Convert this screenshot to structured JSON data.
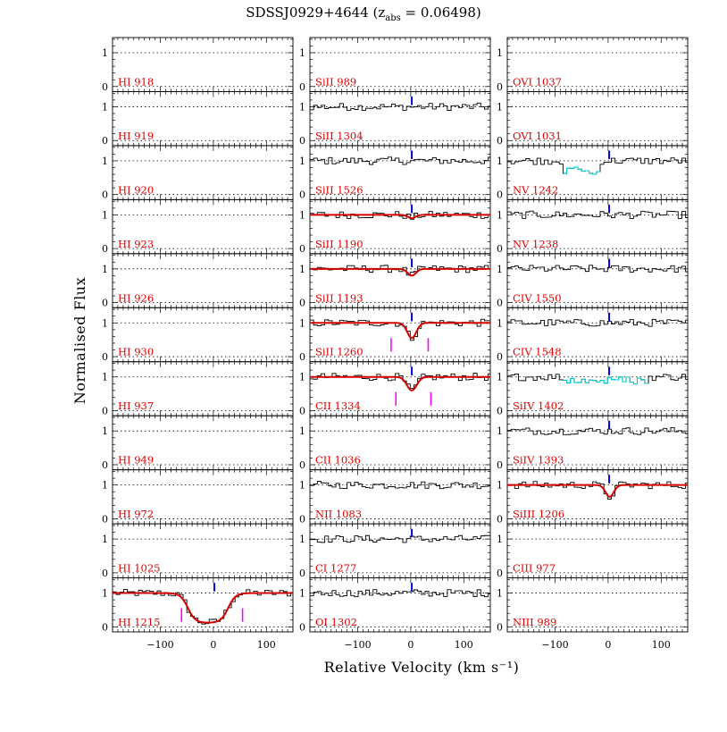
{
  "chart_data": {
    "type": "line",
    "title_prefix": "SDSSJ0929+4644 (z",
    "title_sub": "abs",
    "title_suffix": " = 0.06498)",
    "xlabel": "Relative Velocity (km s⁻¹)",
    "ylabel": "Normalised Flux",
    "xlim": [
      -190,
      150
    ],
    "ylim": [
      -0.15,
      1.45
    ],
    "x_ticks": [
      "−100",
      "0",
      "100"
    ],
    "x_tick_values": [
      -100,
      0,
      100
    ],
    "y_ticks": [
      "0",
      "1"
    ],
    "y_tick_values": [
      0,
      1
    ],
    "columns": [
      [
        {
          "label": "HI 918",
          "data": false
        },
        {
          "label": "HI 919",
          "data": false
        },
        {
          "label": "HI 920",
          "data": false
        },
        {
          "label": "HI 923",
          "data": false
        },
        {
          "label": "HI 926",
          "data": false
        },
        {
          "label": "HI 930",
          "data": false
        },
        {
          "label": "HI 937",
          "data": false
        },
        {
          "label": "HI 949",
          "data": false
        },
        {
          "label": "HI 972",
          "data": false
        },
        {
          "label": "HI 1025",
          "data": false
        },
        {
          "label": "HI 1215",
          "data": true,
          "marker": true,
          "absorption": {
            "depth": 0.88,
            "center": -10,
            "width": 38,
            "shape": "flat"
          },
          "fit": true,
          "ticks": [
            -60,
            55
          ]
        }
      ],
      [
        {
          "label": "SiII 989",
          "data": false
        },
        {
          "label": "SiII 1304",
          "data": true,
          "marker": true
        },
        {
          "label": "SiII 1526",
          "data": true,
          "marker": true
        },
        {
          "label": "SiII 1190",
          "data": true,
          "marker": true,
          "absorption": {
            "depth": 0.1,
            "center": 2,
            "width": 10
          },
          "fit": true
        },
        {
          "label": "SiII 1193",
          "data": true,
          "marker": true,
          "absorption": {
            "depth": 0.2,
            "center": 2,
            "width": 11
          },
          "fit": true
        },
        {
          "label": "SiII 1260",
          "data": true,
          "marker": true,
          "absorption": {
            "depth": 0.45,
            "center": 2,
            "width": 12
          },
          "fit": true,
          "ticks": [
            -37,
            33
          ]
        },
        {
          "label": "CII 1334",
          "data": true,
          "marker": true,
          "absorption": {
            "depth": 0.4,
            "center": 2,
            "width": 13
          },
          "fit": true,
          "ticks": [
            -28,
            38
          ]
        },
        {
          "label": "CII 1036",
          "data": false
        },
        {
          "label": "NII 1083",
          "data": true,
          "marker": false
        },
        {
          "label": "CI 1277",
          "data": true,
          "marker": true
        },
        {
          "label": "OI 1302",
          "data": true,
          "marker": true
        }
      ],
      [
        {
          "label": "OVI 1037",
          "data": false
        },
        {
          "label": "OVI 1031",
          "data": false
        },
        {
          "label": "NV 1242",
          "data": true,
          "marker": true,
          "blend": {
            "start": -85,
            "end": -20,
            "depth": 0.35
          }
        },
        {
          "label": "NV 1238",
          "data": true,
          "marker": true
        },
        {
          "label": "CIV 1550",
          "data": true,
          "marker": true
        },
        {
          "label": "CIV 1548",
          "data": true,
          "marker": true
        },
        {
          "label": "SiIV 1402",
          "data": true,
          "marker": true,
          "blend": {
            "start": -90,
            "end": 70,
            "depth": 0.12
          }
        },
        {
          "label": "SiIV 1393",
          "data": true,
          "marker": true
        },
        {
          "label": "SiIII 1206",
          "data": true,
          "marker": true,
          "absorption": {
            "depth": 0.35,
            "center": 3,
            "width": 11
          },
          "fit": true
        },
        {
          "label": "CIII 977",
          "data": false
        },
        {
          "label": "NIII 989",
          "data": false
        }
      ]
    ]
  },
  "colors": {
    "ion_label": "#e00000",
    "fit": "#d40000",
    "marker": "#0000dd",
    "component": "#ff00ff",
    "blend": "#00cfd6",
    "spectrum": "#000000"
  }
}
